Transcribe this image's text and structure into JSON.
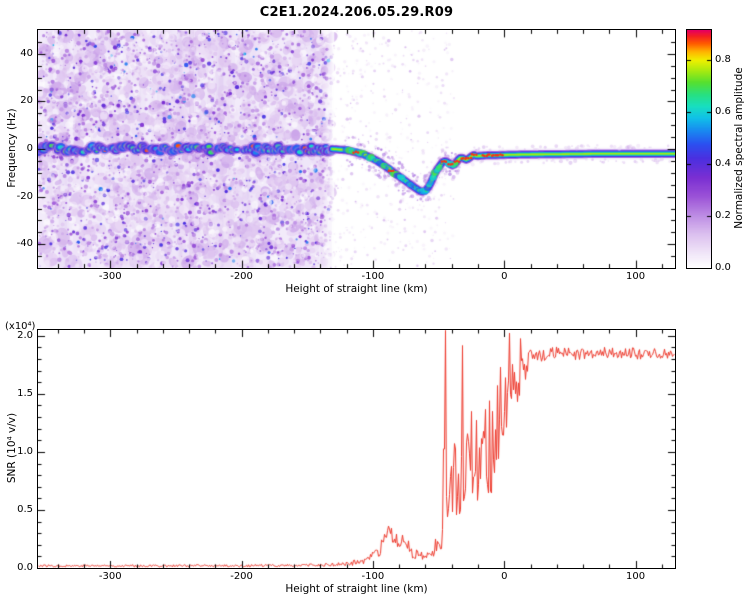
{
  "title": "C2E1.2024.206.05.29.R09",
  "chart_data": [
    {
      "type": "heatmap",
      "panel": "spectrogram",
      "xlabel": "Height of straight line (km)",
      "ylabel": "Frequency (Hz)",
      "xlim": [
        -355,
        130
      ],
      "ylim": [
        -50,
        50
      ],
      "xticks": [
        -300,
        -200,
        -100,
        0,
        100
      ],
      "xtick_labels": [
        "-300",
        "-200",
        "-100",
        "0",
        "100"
      ],
      "yticks": [
        -40,
        -20,
        0,
        20,
        40
      ],
      "ytick_labels": [
        "-40",
        "-20",
        "0",
        "20",
        "40"
      ],
      "colorbar": {
        "label": "Normalized spectral amplitude",
        "ticks": [
          0,
          0.2,
          0.4,
          0.6,
          0.8
        ],
        "tick_labels": [
          "0.0",
          "0.2",
          "0.4",
          "0.6",
          "0.8"
        ],
        "display_max": 0.915,
        "colormap_stops": [
          [
            0,
            "#ffffff"
          ],
          [
            0.06,
            "#f1e6f8"
          ],
          [
            0.14,
            "#dcc0ef"
          ],
          [
            0.22,
            "#bd8ce4"
          ],
          [
            0.3,
            "#9b52d7"
          ],
          [
            0.38,
            "#7a2fd2"
          ],
          [
            0.46,
            "#4b2fe0"
          ],
          [
            0.52,
            "#2b50f0"
          ],
          [
            0.58,
            "#188cf0"
          ],
          [
            0.63,
            "#10c0e8"
          ],
          [
            0.68,
            "#18dfc0"
          ],
          [
            0.73,
            "#28e080"
          ],
          [
            0.78,
            "#55e030"
          ],
          [
            0.83,
            "#a8ea10"
          ],
          [
            0.875,
            "#f0f000"
          ],
          [
            0.91,
            "#ffb400"
          ],
          [
            0.945,
            "#ff5a00"
          ],
          [
            0.975,
            "#f52020"
          ],
          [
            1,
            "#e6005f"
          ]
        ]
      },
      "noise_region": {
        "x_start": -355,
        "x_end": -131,
        "description": "dense purple speckle noise spanning all frequencies"
      },
      "sparse_noise_region": {
        "x_start": -131,
        "x_end": -38,
        "description": "faint sparse speckles"
      },
      "ridge_trace": [
        [
          -355,
          0
        ],
        [
          -300,
          0
        ],
        [
          -250,
          0
        ],
        [
          -200,
          0
        ],
        [
          -160,
          0
        ],
        [
          -131,
          0
        ],
        [
          -120,
          -0.5
        ],
        [
          -112,
          -1.5
        ],
        [
          -106,
          -2.5
        ],
        [
          -100,
          -4
        ],
        [
          -95,
          -5.5
        ],
        [
          -90,
          -7.5
        ],
        [
          -85,
          -9.5
        ],
        [
          -80,
          -11.5
        ],
        [
          -75,
          -13.5
        ],
        [
          -70,
          -15.5
        ],
        [
          -66,
          -17
        ],
        [
          -63,
          -18
        ],
        [
          -60,
          -17.5
        ],
        [
          -57,
          -15.5
        ],
        [
          -55,
          -13
        ],
        [
          -53,
          -10.5
        ],
        [
          -51,
          -8.5
        ],
        [
          -49,
          -7
        ],
        [
          -47,
          -5.5
        ],
        [
          -45,
          -5
        ],
        [
          -43,
          -5.5
        ],
        [
          -41,
          -6.5
        ],
        [
          -39,
          -7
        ],
        [
          -37,
          -6
        ],
        [
          -35,
          -4.5
        ],
        [
          -33,
          -3.5
        ],
        [
          -31,
          -4
        ],
        [
          -29,
          -4.5
        ],
        [
          -27,
          -4
        ],
        [
          -25,
          -3
        ],
        [
          -23,
          -2.5
        ],
        [
          -21,
          -3
        ],
        [
          -17,
          -2.8
        ],
        [
          -12,
          -2.6
        ],
        [
          -6,
          -2.6
        ],
        [
          0,
          -2.5
        ],
        [
          15,
          -2.3
        ],
        [
          40,
          -2.2
        ],
        [
          70,
          -2
        ],
        [
          100,
          -2
        ],
        [
          130,
          -2
        ]
      ],
      "red_marks": [
        -113,
        -86,
        -46,
        -41,
        -36,
        -31,
        -27,
        -23,
        -15,
        -11,
        -7,
        -3
      ]
    },
    {
      "type": "line",
      "panel": "snr",
      "xlabel": "Height of straight line (km)",
      "ylabel": "SNR (10⁴ v/v)",
      "scale_note": "(x10⁴)",
      "color": "#ee3b2e",
      "xlim": [
        -355,
        130
      ],
      "ylim": [
        0,
        2.05
      ],
      "xticks": [
        -300,
        -200,
        -100,
        0,
        100
      ],
      "xtick_labels": [
        "-300",
        "-200",
        "-100",
        "0",
        "100"
      ],
      "yticks": [
        0,
        0.5,
        1.0,
        1.5,
        2.0
      ],
      "ytick_labels": [
        "0.0",
        "0.5",
        "1.0",
        "1.5",
        "2.0"
      ],
      "profile_keypoints": [
        [
          -355,
          0.015,
          0.01
        ],
        [
          -200,
          0.015,
          0.01
        ],
        [
          -140,
          0.02,
          0.012
        ],
        [
          -120,
          0.03,
          0.02
        ],
        [
          -105,
          0.06,
          0.03
        ],
        [
          -96,
          0.12,
          0.06
        ],
        [
          -88,
          0.3,
          0.07
        ],
        [
          -82,
          0.22,
          0.07
        ],
        [
          -76,
          0.27,
          0.06
        ],
        [
          -70,
          0.12,
          0.05
        ],
        [
          -62,
          0.09,
          0.04
        ],
        [
          -55,
          0.12,
          0.05
        ],
        [
          -50,
          0.22,
          0.1
        ],
        [
          -46,
          0.45,
          0.3
        ],
        [
          -44,
          0.6,
          0.45
        ],
        [
          -42,
          0.5,
          0.3
        ],
        [
          -38,
          0.75,
          0.35
        ],
        [
          -34,
          0.9,
          0.45
        ],
        [
          -30,
          0.7,
          0.35
        ],
        [
          -26,
          0.9,
          0.4
        ],
        [
          -22,
          0.65,
          0.3
        ],
        [
          -18,
          0.8,
          0.35
        ],
        [
          -14,
          1.1,
          0.4
        ],
        [
          -10,
          1.0,
          0.45
        ],
        [
          -6,
          1.25,
          0.35
        ],
        [
          -2,
          1.3,
          0.3
        ],
        [
          2,
          1.45,
          0.25
        ],
        [
          6,
          1.55,
          0.22
        ],
        [
          10,
          1.6,
          0.2
        ],
        [
          14,
          1.7,
          0.15
        ],
        [
          18,
          1.78,
          0.1
        ],
        [
          24,
          1.83,
          0.06
        ],
        [
          40,
          1.86,
          0.05
        ],
        [
          60,
          1.84,
          0.05
        ],
        [
          80,
          1.86,
          0.05
        ],
        [
          100,
          1.85,
          0.05
        ],
        [
          130,
          1.85,
          0.05
        ]
      ],
      "spikes": [
        [
          -86,
          0.34
        ],
        [
          -45,
          2.05
        ],
        [
          -32,
          1.92
        ],
        [
          -25,
          1.35
        ],
        [
          12,
          1.98
        ]
      ]
    }
  ]
}
